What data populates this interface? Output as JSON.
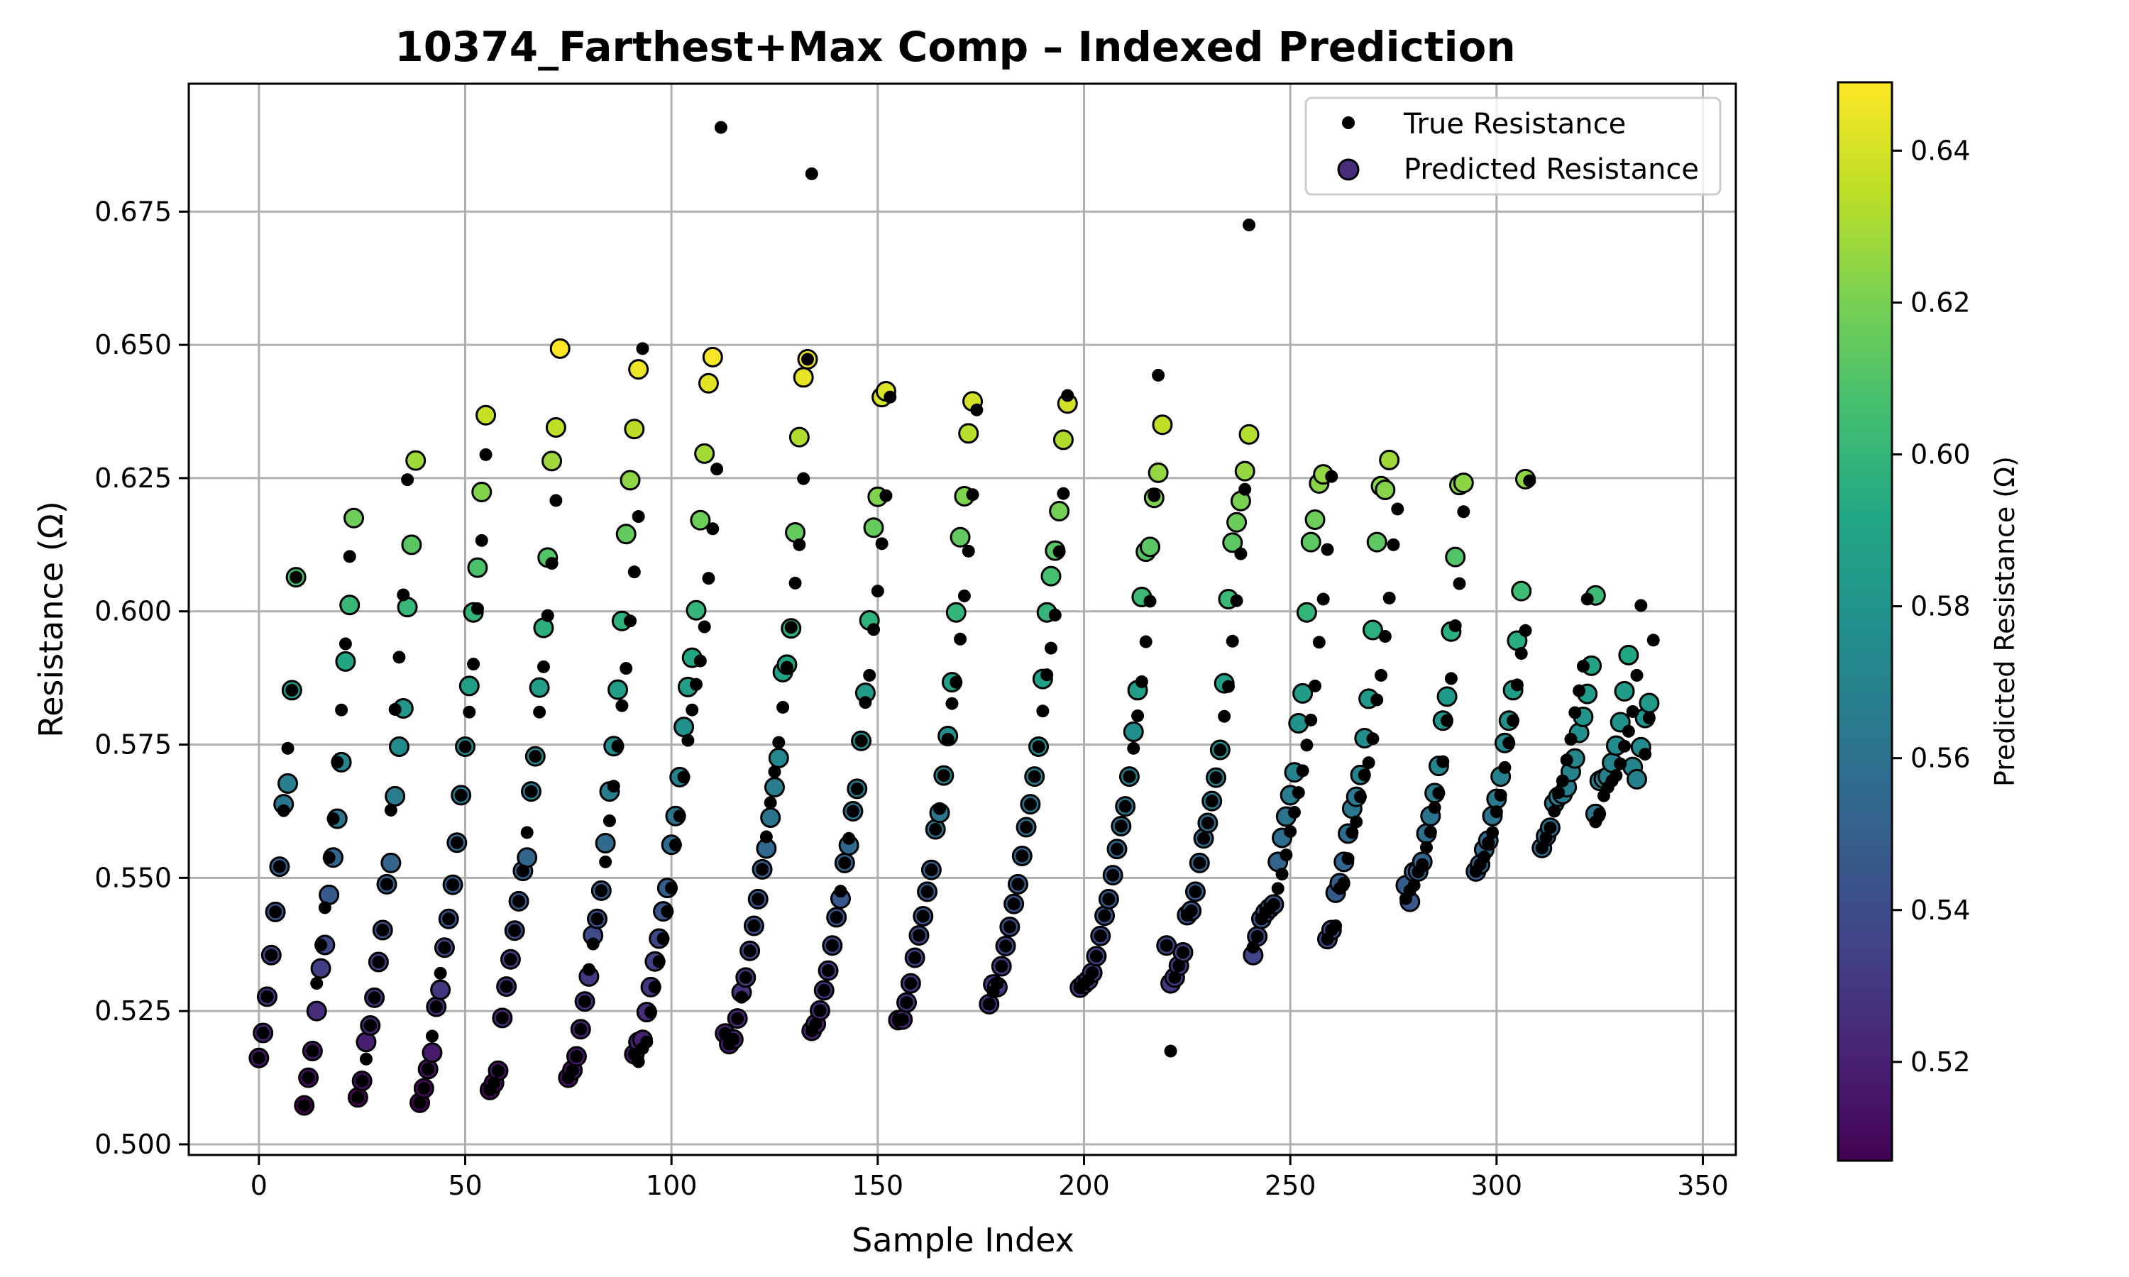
{
  "chart_data": {
    "type": "scatter",
    "title": "10374_Farthest+Max Comp – Indexed Prediction",
    "xlabel": "Sample Index",
    "ylabel": "Resistance (Ω)",
    "xlim": [
      -17,
      358
    ],
    "ylim": [
      0.498,
      0.699
    ],
    "xticks": [
      0,
      50,
      100,
      150,
      200,
      250,
      300,
      350
    ],
    "yticks": [
      0.5,
      0.525,
      0.55,
      0.575,
      0.6,
      0.625,
      0.65,
      0.675
    ],
    "grid": true,
    "legend_position": "top-right",
    "legend": [
      {
        "label": "True Resistance",
        "marker": "small-black-dot"
      },
      {
        "label": "Predicted Resistance",
        "marker": "purple-circle"
      }
    ],
    "colorbar": {
      "label": "Predicted Resistance (Ω)",
      "colormap": "viridis",
      "range": [
        0.507,
        0.649
      ],
      "ticks": [
        0.52,
        0.54,
        0.56,
        0.58,
        0.6,
        0.62,
        0.64
      ]
    },
    "groups": [
      {
        "start": 0,
        "true": [
          0.5162,
          0.5209,
          0.5277,
          0.5355,
          0.5436,
          0.5521,
          0.5626,
          0.5743,
          0.5852,
          0.6064
        ],
        "pred": [
          0.5162,
          0.5209,
          0.5277,
          0.5355,
          0.5436,
          0.5521,
          0.5638,
          0.5677,
          0.5852,
          0.6064
        ]
      },
      {
        "start": 11,
        "true": [
          0.5073,
          0.5125,
          0.5175,
          0.5302,
          0.5374,
          0.5444,
          0.5538,
          0.5611,
          0.5717,
          0.5815,
          0.5939,
          0.6103
        ],
        "pred": [
          0.5073,
          0.5125,
          0.5175,
          0.525,
          0.533,
          0.5374,
          0.5468,
          0.5538,
          0.5611,
          0.5717,
          0.5906,
          0.6012,
          0.6175
        ]
      },
      {
        "start": 24,
        "true": [
          0.5088,
          0.5119,
          0.516,
          0.5223,
          0.5275,
          0.5342,
          0.5402,
          0.5488,
          0.5627,
          0.5816,
          0.5914,
          0.6031,
          0.6247
        ],
        "pred": [
          0.5088,
          0.5119,
          0.5192,
          0.5223,
          0.5275,
          0.5342,
          0.5402,
          0.5488,
          0.5528,
          0.5653,
          0.5746,
          0.5818,
          0.6008,
          0.6125,
          0.6283
        ]
      },
      {
        "start": 39,
        "true": [
          0.5078,
          0.5105,
          0.5141,
          0.5203,
          0.5258,
          0.5321,
          0.5369,
          0.5423,
          0.5487,
          0.5566,
          0.5655,
          0.5746,
          0.5811,
          0.5901,
          0.6005,
          0.6133,
          0.6294
        ],
        "pred": [
          0.5078,
          0.5105,
          0.5141,
          0.5172,
          0.5258,
          0.529,
          0.5369,
          0.5423,
          0.5487,
          0.5566,
          0.5655,
          0.5746,
          0.586,
          0.5998,
          0.6082,
          0.6224,
          0.6368
        ]
      },
      {
        "start": 56,
        "true": [
          0.5102,
          0.5115,
          0.5138,
          0.5237,
          0.5296,
          0.5347,
          0.5401,
          0.5456,
          0.5513,
          0.5585,
          0.5662,
          0.5728,
          0.5811,
          0.5896,
          0.5992,
          0.609,
          0.6208
        ],
        "pred": [
          0.5102,
          0.5115,
          0.5138,
          0.5237,
          0.5296,
          0.5347,
          0.5401,
          0.5456,
          0.5513,
          0.5538,
          0.5662,
          0.5728,
          0.5857,
          0.5969,
          0.6101,
          0.6282,
          0.6345,
          0.6493
        ]
      },
      {
        "start": 75,
        "true": [
          0.5125,
          0.5139,
          0.5165,
          0.5216,
          0.5268,
          0.5328,
          0.5376,
          0.5423,
          0.5476,
          0.553,
          0.5607,
          0.5672,
          0.5747,
          0.5823,
          0.5893,
          0.5982,
          0.6074,
          0.6178,
          0.6493
        ],
        "pred": [
          0.5125,
          0.5139,
          0.5165,
          0.5216,
          0.5268,
          0.5315,
          0.5392,
          0.5423,
          0.5476,
          0.5565,
          0.5662,
          0.5747,
          0.5853,
          0.5982,
          0.6145,
          0.6246,
          0.6342,
          0.6454
        ]
      },
      {
        "start": 91,
        "true": [
          0.5169,
          0.5155,
          0.518,
          0.5192,
          0.5248,
          0.5295,
          0.5343,
          0.5386,
          0.5437,
          0.5481,
          0.5562,
          0.5616,
          0.5689,
          0.5758,
          0.5815,
          0.5863,
          0.5907,
          0.5971,
          0.6062,
          0.6155,
          0.6267,
          0.6908
        ],
        "pred": [
          0.5169,
          0.5192,
          0.5196,
          0.5248,
          0.5295,
          0.5343,
          0.5386,
          0.5437,
          0.5481,
          0.5562,
          0.5616,
          0.5689,
          0.5783,
          0.5858,
          0.5913,
          0.6002,
          0.6171,
          0.6296,
          0.6428,
          0.6477
        ]
      },
      {
        "start": 113,
        "true": [
          0.5208,
          0.5188,
          0.5197,
          0.5236,
          0.5276,
          0.5313,
          0.5363,
          0.541,
          0.546,
          0.5516,
          0.5577,
          0.5641,
          0.5699,
          0.5754,
          0.582,
          0.5895,
          0.597,
          0.6053,
          0.6125,
          0.6249,
          0.6473,
          0.6821
        ],
        "pred": [
          0.5208,
          0.5188,
          0.5197,
          0.5236,
          0.5285,
          0.5313,
          0.5363,
          0.541,
          0.546,
          0.5516,
          0.5555,
          0.5613,
          0.567,
          0.5725,
          0.5886,
          0.59,
          0.5968,
          0.6148,
          0.6327,
          0.6439,
          0.6473
        ]
      },
      {
        "start": 134,
        "true": [
          0.5213,
          0.5226,
          0.5251,
          0.5289,
          0.5326,
          0.5373,
          0.5426,
          0.5475,
          0.5528,
          0.5574,
          0.5625,
          0.5667,
          0.5757,
          0.5829,
          0.588,
          0.5966,
          0.6038,
          0.6127,
          0.6217,
          0.6402
        ],
        "pred": [
          0.5213,
          0.5226,
          0.5251,
          0.5289,
          0.5326,
          0.5373,
          0.5426,
          0.5461,
          0.5528,
          0.5561,
          0.5625,
          0.5667,
          0.5757,
          0.5847,
          0.5983,
          0.6157,
          0.6215,
          0.6402,
          0.6413
        ]
      },
      {
        "start": 155,
        "true": [
          0.5233,
          0.5234,
          0.5266,
          0.5302,
          0.535,
          0.5392,
          0.5428,
          0.5474,
          0.5515,
          0.5591,
          0.563,
          0.5692,
          0.576,
          0.5827,
          0.5867,
          0.5948,
          0.6029,
          0.6113,
          0.6219,
          0.6378
        ],
        "pred": [
          0.5233,
          0.5234,
          0.5266,
          0.5302,
          0.535,
          0.5392,
          0.5428,
          0.5474,
          0.5515,
          0.5591,
          0.5622,
          0.5692,
          0.5766,
          0.5867,
          0.5998,
          0.6139,
          0.6216,
          0.6334,
          0.6394
        ]
      },
      {
        "start": 177,
        "true": [
          0.5263,
          0.5286,
          0.5302,
          0.5334,
          0.5372,
          0.5408,
          0.5451,
          0.5488,
          0.5541,
          0.5595,
          0.5638,
          0.569,
          0.5746,
          0.5813,
          0.5881,
          0.5931,
          0.5993,
          0.6112,
          0.6221,
          0.6405
        ],
        "pred": [
          0.5263,
          0.53,
          0.5295,
          0.5334,
          0.5372,
          0.5408,
          0.5451,
          0.5488,
          0.5541,
          0.5595,
          0.5638,
          0.569,
          0.5746,
          0.5873,
          0.5998,
          0.6066,
          0.6114,
          0.6188,
          0.6322,
          0.639
        ]
      },
      {
        "start": 199,
        "true": [
          0.5294,
          0.5301,
          0.5308,
          0.5322,
          0.5353,
          0.5391,
          0.5429,
          0.546,
          0.5505,
          0.5554,
          0.5597,
          0.5634,
          0.569,
          0.5743,
          0.5804,
          0.5868,
          0.5943,
          0.6019,
          0.6217,
          0.6443
        ],
        "pred": [
          0.5294,
          0.5301,
          0.5308,
          0.5322,
          0.5353,
          0.5391,
          0.5429,
          0.546,
          0.5505,
          0.5554,
          0.5597,
          0.5634,
          0.569,
          0.5774,
          0.5852,
          0.6027,
          0.6112,
          0.6121,
          0.6213,
          0.626,
          0.635
        ]
      },
      {
        "start": 220,
        "true": [
          0.5373,
          0.5175,
          0.5313,
          0.5335,
          0.536,
          0.543,
          0.5438,
          0.5474,
          0.5528,
          0.5574,
          0.5603,
          0.5644,
          0.5688,
          0.574,
          0.5803,
          0.5859,
          0.5944,
          0.602,
          0.6108,
          0.6229,
          0.6725
        ],
        "pred": [
          0.5373,
          0.5302,
          0.5313,
          0.5335,
          0.536,
          0.543,
          0.5438,
          0.5474,
          0.5528,
          0.5574,
          0.5603,
          0.5644,
          0.5688,
          0.574,
          0.5865,
          0.6023,
          0.6129,
          0.6167,
          0.6207,
          0.6263,
          0.6332
        ]
      },
      {
        "start": 241,
        "true": [
          0.537,
          0.539,
          0.5423,
          0.5435,
          0.5443,
          0.545,
          0.548,
          0.5507,
          0.5543,
          0.5587,
          0.5623,
          0.566,
          0.5701,
          0.5749,
          0.5796,
          0.586,
          0.5942,
          0.6023,
          0.6116,
          0.6253
        ],
        "pred": [
          0.5355,
          0.539,
          0.5423,
          0.5435,
          0.5443,
          0.545,
          0.553,
          0.5575,
          0.5615,
          0.5655,
          0.5698,
          0.579,
          0.5846,
          0.5998,
          0.613,
          0.6172,
          0.624,
          0.6257
        ]
      },
      {
        "start": 259,
        "true": [
          0.5385,
          0.5402,
          0.541,
          0.548,
          0.549,
          0.5536,
          0.5585,
          0.5605,
          0.5652,
          0.5693,
          0.5716,
          0.5761,
          0.5834,
          0.588,
          0.5953,
          0.6025,
          0.6125,
          0.6192
        ],
        "pred": [
          0.5385,
          0.5402,
          0.5472,
          0.549,
          0.553,
          0.5583,
          0.563,
          0.5652,
          0.5693,
          0.5762,
          0.5836,
          0.5965,
          0.613,
          0.6235,
          0.6228,
          0.6284
        ]
      },
      {
        "start": 278,
        "true": [
          0.5461,
          0.5476,
          0.5486,
          0.5511,
          0.5525,
          0.5557,
          0.5586,
          0.5632,
          0.5659,
          0.5718,
          0.5795,
          0.5874,
          0.5973,
          0.6052,
          0.6187
        ],
        "pred": [
          0.5486,
          0.5455,
          0.5511,
          0.5512,
          0.553,
          0.5583,
          0.5616,
          0.5659,
          0.571,
          0.5795,
          0.584,
          0.5962,
          0.6102,
          0.6237,
          0.6241
        ]
      },
      {
        "start": 295,
        "true": [
          0.5512,
          0.5525,
          0.5539,
          0.5566,
          0.5585,
          0.5624,
          0.5655,
          0.5707,
          0.5753,
          0.5795,
          0.5862,
          0.5921,
          0.5964,
          0.6245
        ],
        "pred": [
          0.5512,
          0.5525,
          0.5553,
          0.557,
          0.5616,
          0.5648,
          0.569,
          0.5753,
          0.5795,
          0.5852,
          0.5945,
          0.6038,
          0.6248
        ]
      },
      {
        "start": 311,
        "true": [
          0.5556,
          0.5575,
          0.5594,
          0.5625,
          0.566,
          0.5682,
          0.5721,
          0.576,
          0.581,
          0.5851,
          0.5897,
          0.6023
        ],
        "pred": [
          0.5556,
          0.5578,
          0.5594,
          0.564,
          0.5652,
          0.5657,
          0.567,
          0.5699,
          0.5724,
          0.5772,
          0.5802,
          0.5845,
          0.5898,
          0.603
        ]
      },
      {
        "start": 324,
        "true": [
          0.5605,
          0.562,
          0.5654,
          0.567,
          0.5682,
          0.5692,
          0.5714,
          0.5747,
          0.5775,
          0.5812,
          0.588,
          0.6011,
          0.5732,
          0.58,
          0.5946
        ],
        "pred": [
          0.562,
          0.5682,
          0.5686,
          0.569,
          0.5716,
          0.5748,
          0.5792,
          0.585,
          0.5918,
          0.5708,
          0.5685,
          0.5745,
          0.58,
          0.5828
        ]
      }
    ]
  }
}
